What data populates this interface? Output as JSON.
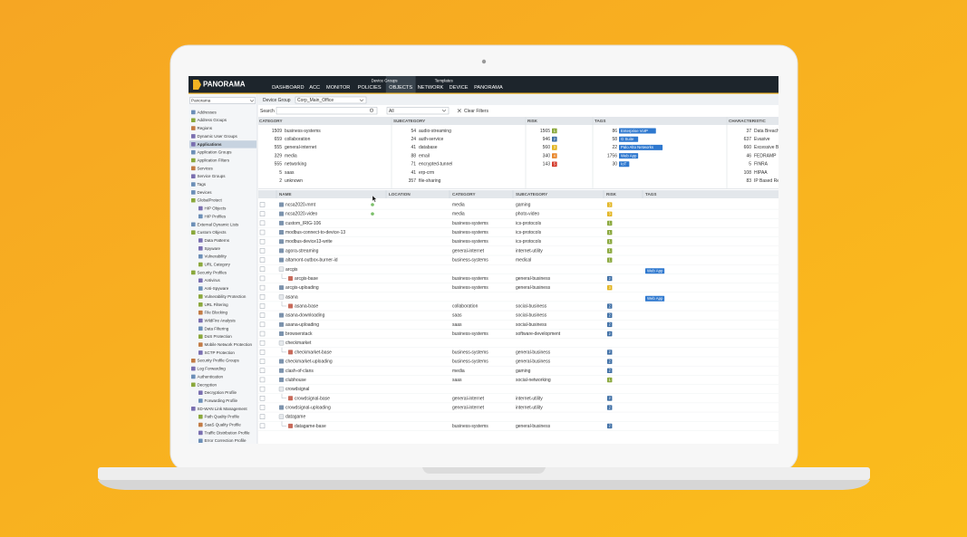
{
  "header": {
    "logo": "PANORAMA",
    "tabs": [
      {
        "label": "DASHBOARD"
      },
      {
        "label": "ACC"
      },
      {
        "label": "MONITOR"
      },
      {
        "group": "Device Groups",
        "tabs": [
          {
            "label": "POLICIES"
          },
          {
            "label": "OBJECTS",
            "selected": true
          }
        ]
      },
      {
        "group": "Templates",
        "tabs": [
          {
            "label": "NETWORK"
          },
          {
            "label": "DEVICE"
          }
        ]
      },
      {
        "label": "PANORAMA"
      }
    ]
  },
  "sidebar": {
    "scope": "Panorama",
    "tree": [
      {
        "label": "Addresses"
      },
      {
        "label": "Address Groups"
      },
      {
        "label": "Regions"
      },
      {
        "label": "Dynamic User Groups"
      },
      {
        "label": "Applications",
        "selected": true
      },
      {
        "label": "Application Groups"
      },
      {
        "label": "Application Filters"
      },
      {
        "label": "Services"
      },
      {
        "label": "Service Groups"
      },
      {
        "label": "Tags"
      },
      {
        "label": "Devices"
      },
      {
        "label": "GlobalProtect",
        "children": [
          {
            "label": "HIP Objects"
          },
          {
            "label": "HIP Profiles"
          }
        ]
      },
      {
        "label": "External Dynamic Lists"
      },
      {
        "label": "Custom Objects",
        "children": [
          {
            "label": "Data Patterns"
          },
          {
            "label": "Spyware"
          },
          {
            "label": "Vulnerability"
          },
          {
            "label": "URL Category"
          }
        ]
      },
      {
        "label": "Security Profiles",
        "children": [
          {
            "label": "Antivirus"
          },
          {
            "label": "Anti-Spyware"
          },
          {
            "label": "Vulnerability Protection"
          },
          {
            "label": "URL Filtering"
          },
          {
            "label": "File Blocking"
          },
          {
            "label": "WildFire Analysis"
          },
          {
            "label": "Data Filtering"
          },
          {
            "label": "DoS Protection"
          },
          {
            "label": "Mobile Network Protection"
          },
          {
            "label": "SCTP Protection"
          }
        ]
      },
      {
        "label": "Security Profile Groups"
      },
      {
        "label": "Log Forwarding"
      },
      {
        "label": "Authentication"
      },
      {
        "label": "Decryption",
        "children": [
          {
            "label": "Decryption Profile"
          },
          {
            "label": "Forwarding Profile"
          }
        ]
      },
      {
        "label": "SD-WAN Link Management",
        "children": [
          {
            "label": "Path Quality Profile"
          },
          {
            "label": "SaaS Quality Profile"
          },
          {
            "label": "Traffic Distribution Profile"
          },
          {
            "label": "Error Correction Profile"
          }
        ]
      }
    ]
  },
  "toolbar": {
    "device_group_label": "Device Group",
    "device_group": "Corp_Main_Office",
    "search_label": "Search",
    "filter_select": "All",
    "clear_filters": "Clear Filters"
  },
  "risk_colors": {
    "1": "#8aa83c",
    "2": "#3d6ea5",
    "3": "#e2b41f",
    "4": "#e8862a",
    "5": "#d33a2b"
  },
  "tag_color": "#2e78cf",
  "filters": [
    {
      "title": "CATEGORY",
      "kind": "text",
      "items": [
        {
          "count": 1509,
          "label": "business-systems"
        },
        {
          "count": 659,
          "label": "collaboration"
        },
        {
          "count": 555,
          "label": "general-internet"
        },
        {
          "count": 329,
          "label": "media"
        },
        {
          "count": 555,
          "label": "networking"
        },
        {
          "count": 5,
          "label": "saas"
        },
        {
          "count": 2,
          "label": "unknown"
        }
      ]
    },
    {
      "title": "SUBCATEGORY",
      "kind": "text",
      "items": [
        {
          "count": 54,
          "label": "audio-streaming"
        },
        {
          "count": 24,
          "label": "auth-service"
        },
        {
          "count": 41,
          "label": "database"
        },
        {
          "count": 88,
          "label": "email"
        },
        {
          "count": 71,
          "label": "encrypted-tunnel"
        },
        {
          "count": 41,
          "label": "erp-crm"
        },
        {
          "count": 357,
          "label": "file-sharing"
        }
      ]
    },
    {
      "title": "RISK",
      "kind": "risk",
      "items": [
        {
          "count": 1565,
          "label": 1
        },
        {
          "count": 946,
          "label": 2
        },
        {
          "count": 560,
          "label": 3
        },
        {
          "count": 340,
          "label": 4
        },
        {
          "count": 143,
          "label": 5
        }
      ]
    },
    {
      "title": "TAGS",
      "kind": "tag",
      "items": [
        {
          "count": 86,
          "label": "Enterprise VoIP"
        },
        {
          "count": 58,
          "label": "G Suite"
        },
        {
          "count": 22,
          "label": "Palo Alto Networks"
        },
        {
          "count": 1756,
          "label": "Web App"
        },
        {
          "count": 30,
          "label": "IoT"
        }
      ]
    },
    {
      "title": "CHARACTERISTIC",
      "kind": "text",
      "items": [
        {
          "count": 37,
          "label": "Data Breaches"
        },
        {
          "count": 637,
          "label": "Evasive"
        },
        {
          "count": 660,
          "label": "Excessive Bandwidth"
        },
        {
          "count": 46,
          "label": "FEDRAMP"
        },
        {
          "count": 5,
          "label": "FINRA"
        },
        {
          "count": 108,
          "label": "HIPAA"
        },
        {
          "count": 83,
          "label": "IP Based Restrictions"
        }
      ]
    }
  ],
  "table": {
    "columns": [
      "NAME",
      "LOCATION",
      "CATEGORY",
      "SUBCATEGORY",
      "RISK",
      "TAGS"
    ],
    "rows": [
      {
        "name": "ncsa2020-mmt",
        "location_dot": true,
        "category": "media",
        "subcategory": "gaming",
        "risk": 3
      },
      {
        "name": "ncsa2020-video",
        "location_dot": true,
        "category": "media",
        "subcategory": "photo-video",
        "risk": 3
      },
      {
        "name": "custom_IRIG-106",
        "category": "business-systems",
        "subcategory": "ics-protocols",
        "risk": 1
      },
      {
        "name": "modbus-connect-to-device-13",
        "category": "business-systems",
        "subcategory": "ics-protocols",
        "risk": 1
      },
      {
        "name": "modbus-device13-write",
        "category": "business-systems",
        "subcategory": "ics-protocols",
        "risk": 1
      },
      {
        "name": "agora-streaming",
        "category": "general-internet",
        "subcategory": "internet-utility",
        "risk": 1
      },
      {
        "name": "altamont-outbox-burner-id",
        "category": "business-systems",
        "subcategory": "medical",
        "risk": 1
      },
      {
        "name": "arcgis",
        "group": true,
        "tags": "Web App"
      },
      {
        "name": "arcgis-base",
        "child": true,
        "category": "business-systems",
        "subcategory": "general-business",
        "risk": 2
      },
      {
        "name": "arcgis-uploading",
        "category": "business-systems",
        "subcategory": "general-business",
        "risk": 3
      },
      {
        "name": "asana",
        "group": true,
        "tags": "Web App"
      },
      {
        "name": "asana-base",
        "child": true,
        "category": "collaboration",
        "subcategory": "social-business",
        "risk": 2
      },
      {
        "name": "asana-downloading",
        "category": "saas",
        "subcategory": "social-business",
        "risk": 2
      },
      {
        "name": "asana-uploading",
        "category": "saas",
        "subcategory": "social-business",
        "risk": 2
      },
      {
        "name": "browserstack",
        "category": "business-systems",
        "subcategory": "software-development",
        "risk": 2
      },
      {
        "name": "checkmarket",
        "group": true
      },
      {
        "name": "checkmarket-base",
        "child": true,
        "category": "business-systems",
        "subcategory": "general-business",
        "risk": 2
      },
      {
        "name": "checkmarket-uploading",
        "category": "business-systems",
        "subcategory": "general-business",
        "risk": 2
      },
      {
        "name": "clash-of-clans",
        "category": "media",
        "subcategory": "gaming",
        "risk": 2
      },
      {
        "name": "clubhouse",
        "category": "saas",
        "subcategory": "social-networking",
        "risk": 1
      },
      {
        "name": "crowdsignal",
        "group": true
      },
      {
        "name": "crowdsignal-base",
        "child": true,
        "category": "general-internet",
        "subcategory": "internet-utility",
        "risk": 2
      },
      {
        "name": "crowdsignal-uploading",
        "category": "general-internet",
        "subcategory": "internet-utility",
        "risk": 2
      },
      {
        "name": "datagame",
        "group": true
      },
      {
        "name": "datagame-base",
        "child": true,
        "category": "business-systems",
        "subcategory": "general-business",
        "risk": 2
      }
    ]
  }
}
